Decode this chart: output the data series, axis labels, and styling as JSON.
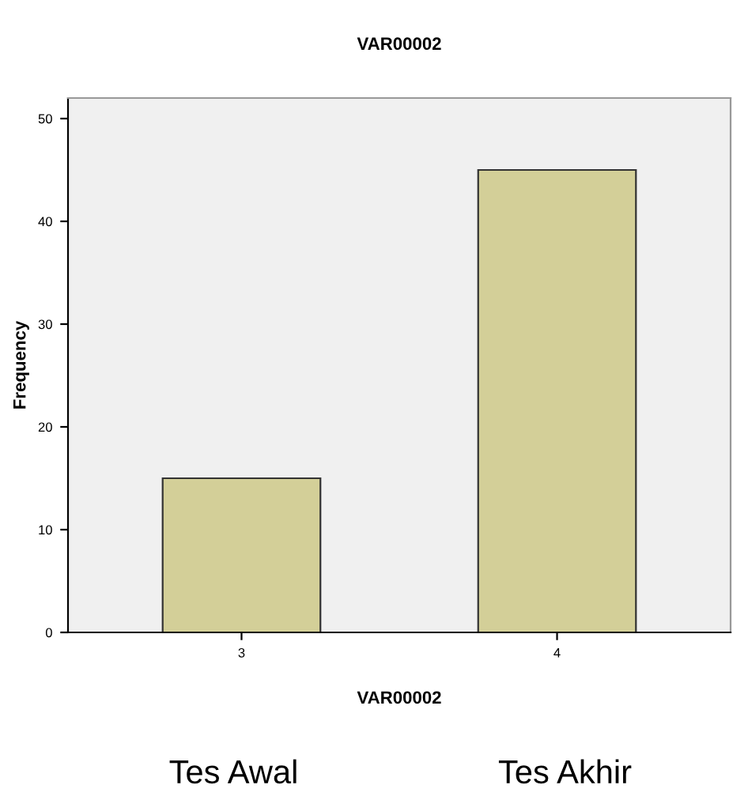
{
  "chart_data": {
    "type": "bar",
    "title": "VAR00002",
    "xlabel": "VAR00002",
    "ylabel": "Frequency",
    "categories": [
      "3",
      "4"
    ],
    "values": [
      15,
      45
    ],
    "color": "#d3cf98",
    "ylim": [
      0,
      52
    ],
    "yticks": [
      0,
      10,
      20,
      30,
      40,
      50
    ],
    "grid": false,
    "annotations": [
      "Tes Awal",
      "Tes Akhir"
    ]
  }
}
